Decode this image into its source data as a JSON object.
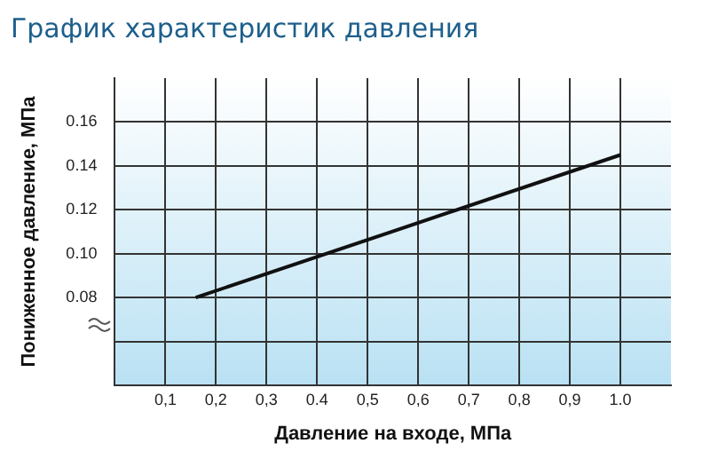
{
  "chart_data": {
    "type": "line",
    "title": "График характеристик давления",
    "xlabel": "Давление на входе, МПа",
    "ylabel": "Пониженное давление, МПа",
    "x": [
      0.16,
      1.0
    ],
    "series": [
      {
        "color": "#111111",
        "values": [
          0.08,
          0.145
        ]
      }
    ],
    "xlim": [
      0,
      1.1
    ],
    "xticks": [
      {
        "value": 0.1,
        "label": "0,1"
      },
      {
        "value": 0.2,
        "label": "0,2"
      },
      {
        "value": 0.3,
        "label": "0,3"
      },
      {
        "value": 0.4,
        "label": "0.4"
      },
      {
        "value": 0.5,
        "label": "0,5"
      },
      {
        "value": 0.6,
        "label": "0,6"
      },
      {
        "value": 0.7,
        "label": "0,7"
      },
      {
        "value": 0.8,
        "label": "0,8"
      },
      {
        "value": 0.9,
        "label": "0,9"
      },
      {
        "value": 1.0,
        "label": "1.0"
      }
    ],
    "ylim": [
      0.04,
      0.18
    ],
    "yticks": [
      {
        "value": 0.06,
        "label": null
      },
      {
        "value": 0.08,
        "label": "0.08"
      },
      {
        "value": 0.1,
        "label": "0.10"
      },
      {
        "value": 0.12,
        "label": "0.12"
      },
      {
        "value": 0.14,
        "label": "0.14"
      },
      {
        "value": 0.16,
        "label": "0.16"
      }
    ],
    "grid": true,
    "legend": false,
    "marker": "none",
    "line_style": "solid"
  }
}
